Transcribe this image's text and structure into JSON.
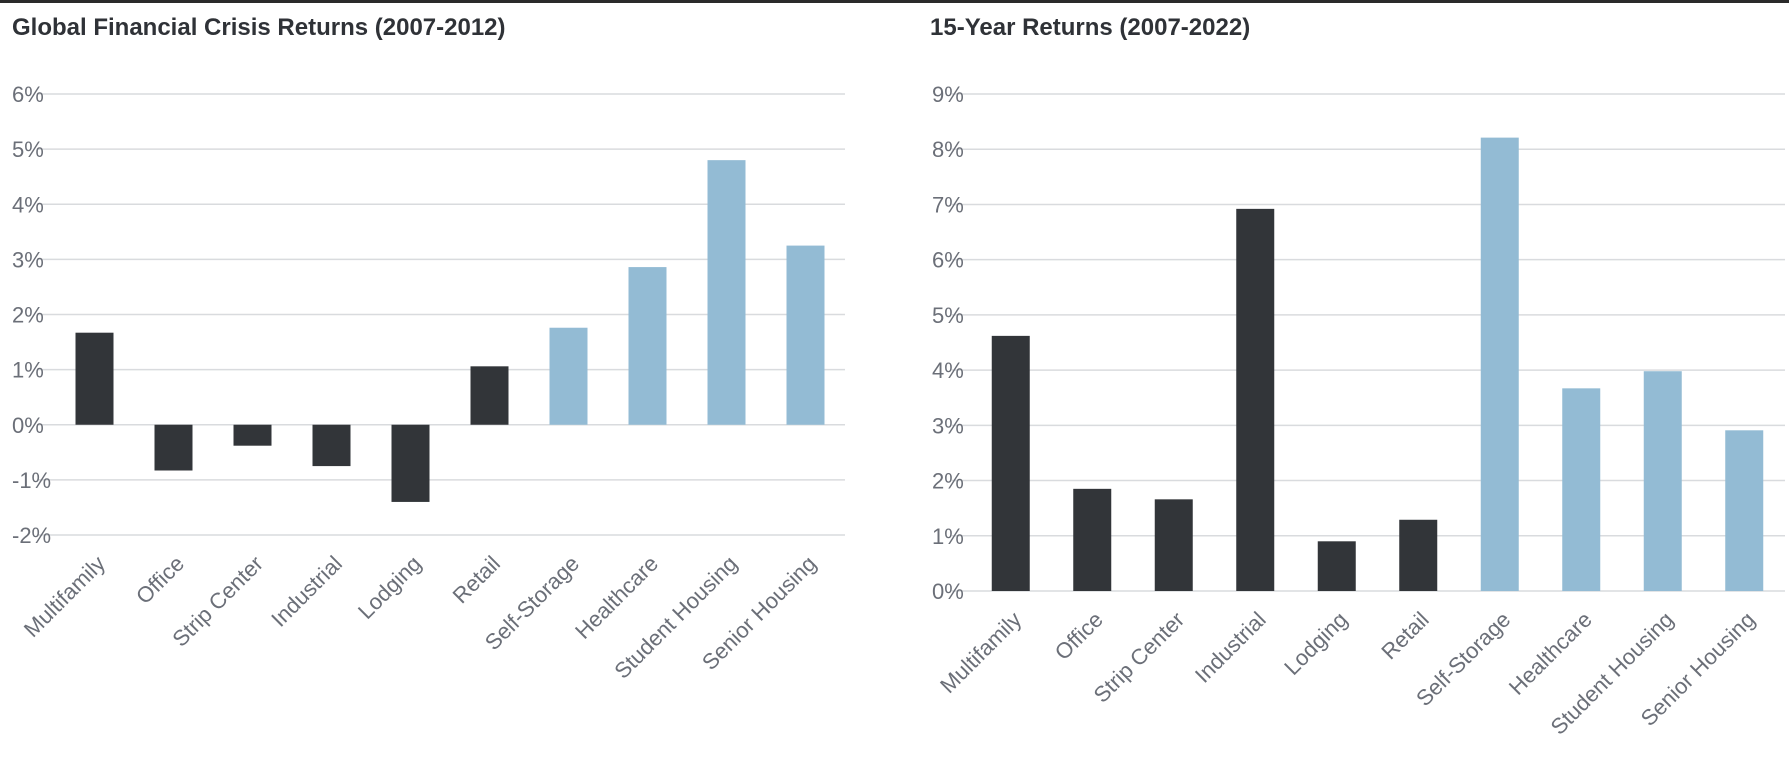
{
  "chart_data": [
    {
      "type": "bar",
      "title": "Global Financial Crisis Returns (2007-2012)",
      "xlabel": "",
      "ylabel": "",
      "categories": [
        "Multifamily",
        "Office",
        "Strip Center",
        "Industrial",
        "Lodging",
        "Retail",
        "Self-Storage",
        "Healthcare",
        "Student Housing",
        "Senior Housing"
      ],
      "values": [
        1.67,
        -0.83,
        -0.38,
        -0.75,
        -1.4,
        1.06,
        1.76,
        2.86,
        4.8,
        3.25
      ],
      "value_unit": "%",
      "ylim": [
        -2,
        6
      ],
      "yticks": [
        "-2%",
        "-1%",
        "0%",
        "1%",
        "2%",
        "3%",
        "4%",
        "5%",
        "6%"
      ],
      "grid": true,
      "legend": "none",
      "colors": {
        "dark": "#323539",
        "light": "#93bbd4",
        "grid": "#d9dbde"
      },
      "bar_color_keys": [
        "dark",
        "dark",
        "dark",
        "dark",
        "dark",
        "dark",
        "light",
        "light",
        "light",
        "light"
      ]
    },
    {
      "type": "bar",
      "title": "15-Year Returns (2007-2022)",
      "xlabel": "",
      "ylabel": "",
      "categories": [
        "Multifamily",
        "Office",
        "Strip Center",
        "Industrial",
        "Lodging",
        "Retail",
        "Self-Storage",
        "Healthcare",
        "Student Housing",
        "Senior Housing"
      ],
      "values": [
        4.62,
        1.85,
        1.66,
        6.92,
        0.9,
        1.29,
        8.21,
        3.67,
        3.98,
        2.91
      ],
      "value_unit": "%",
      "ylim": [
        0,
        9
      ],
      "yticks": [
        "0%",
        "1%",
        "2%",
        "3%",
        "4%",
        "5%",
        "6%",
        "7%",
        "8%",
        "9%"
      ],
      "grid": true,
      "legend": "none",
      "colors": {
        "dark": "#323539",
        "light": "#93bbd4",
        "grid": "#d9dbde"
      },
      "bar_color_keys": [
        "dark",
        "dark",
        "dark",
        "dark",
        "dark",
        "dark",
        "light",
        "light",
        "light",
        "light"
      ]
    }
  ]
}
